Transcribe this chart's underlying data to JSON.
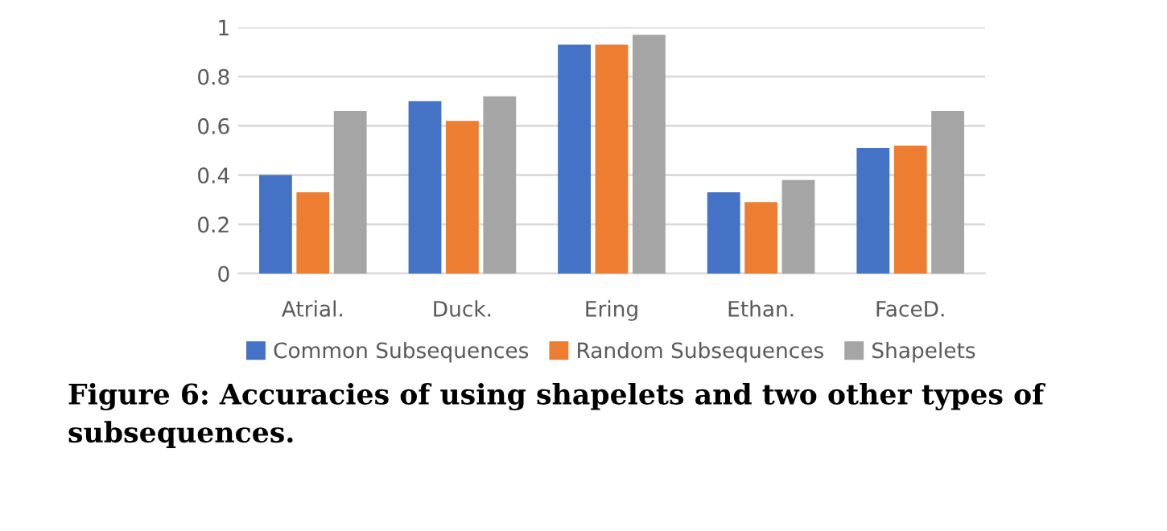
{
  "chart_data": {
    "type": "bar",
    "categories": [
      "Atrial.",
      "Duck.",
      "Ering",
      "Ethan.",
      "FaceD."
    ],
    "series": [
      {
        "name": "Common Subsequences",
        "color": "#4472c4",
        "values": [
          0.4,
          0.7,
          0.93,
          0.33,
          0.51
        ]
      },
      {
        "name": "Random Subsequences",
        "color": "#ed7d31",
        "values": [
          0.33,
          0.62,
          0.93,
          0.29,
          0.52
        ]
      },
      {
        "name": "Shapelets",
        "color": "#a5a5a5",
        "values": [
          0.66,
          0.72,
          0.97,
          0.38,
          0.66
        ]
      }
    ],
    "ylim": [
      0,
      1
    ],
    "yticks": [
      0,
      0.2,
      0.4,
      0.6,
      0.8,
      1
    ],
    "grid": "y",
    "legend": "bottom",
    "annotations": [
      "Figure 6: Accuracies of using shapelets and two other types of subsequences."
    ]
  }
}
